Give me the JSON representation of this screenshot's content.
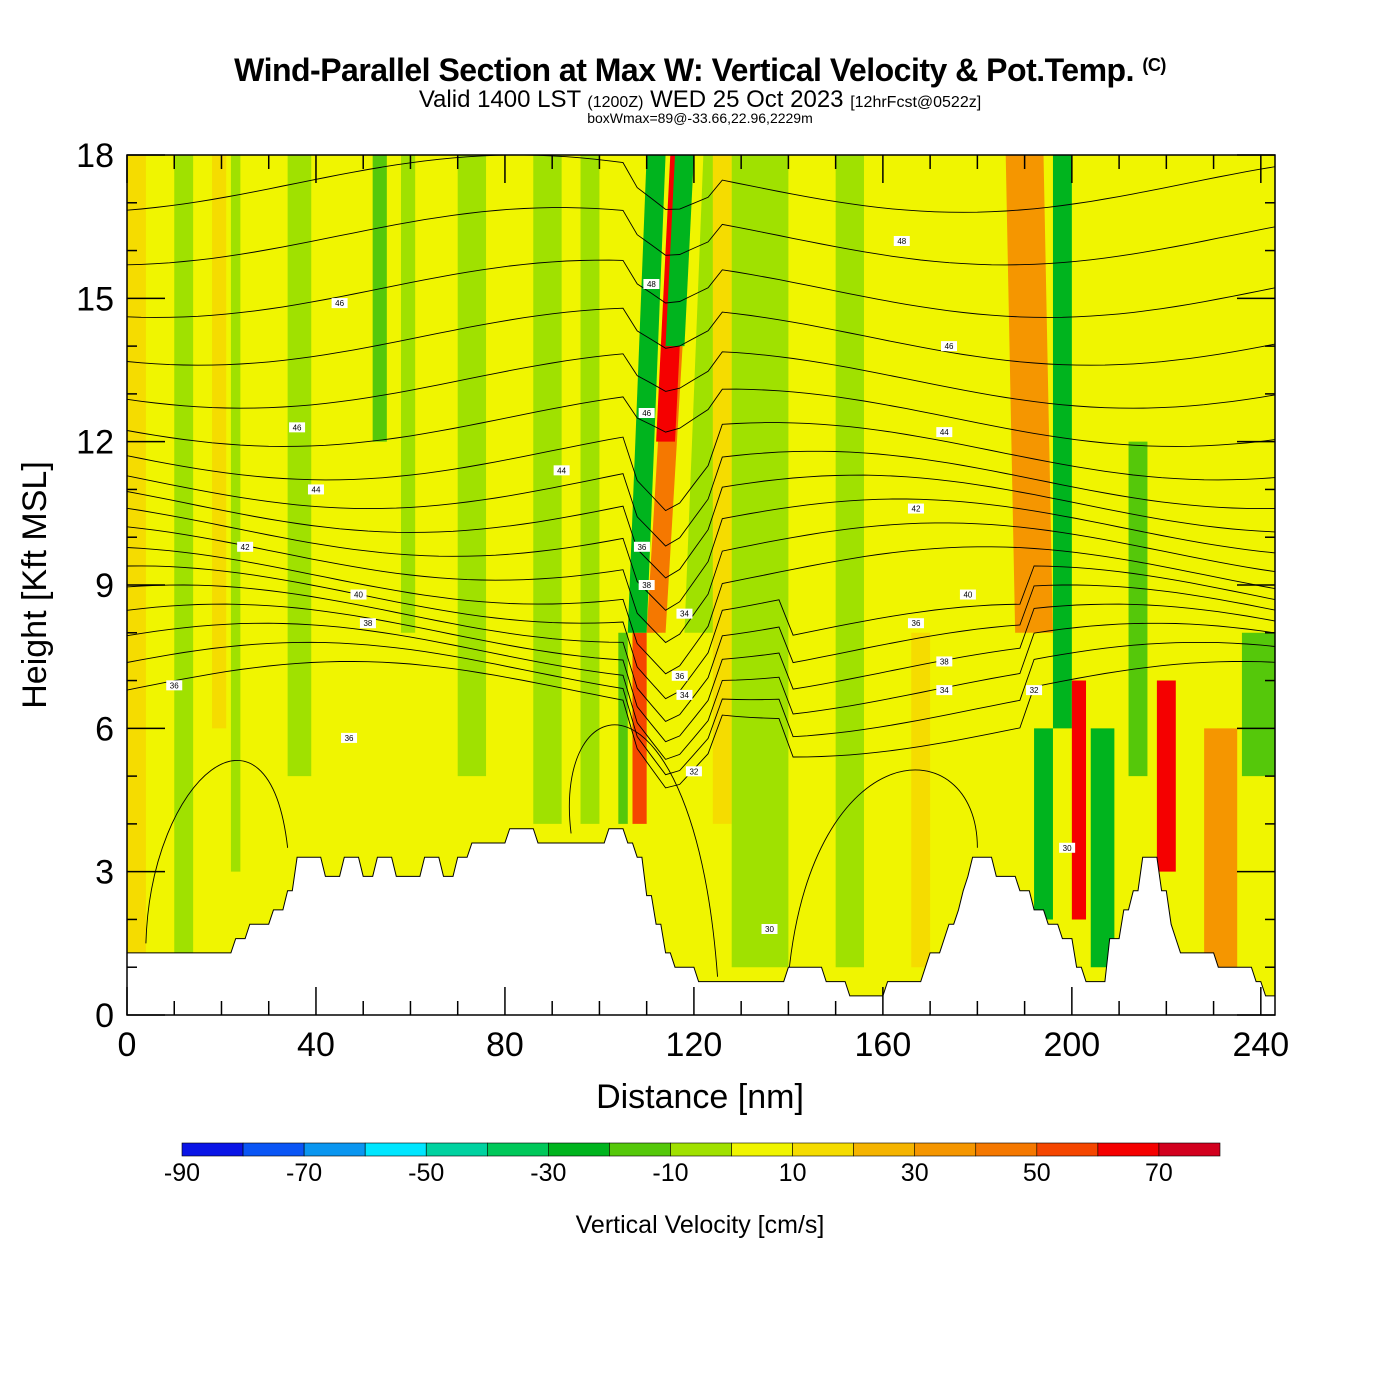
{
  "chart_data": {
    "type": "heatmap",
    "title": "Wind-Parallel Section at Max W: Vertical Velocity & Pot.Temp.",
    "copyright": "(C)",
    "subtitle_valid": "Valid 1400 LST",
    "subtitle_utc": "(1200Z)",
    "subtitle_date": "WED 25 Oct 2023",
    "subtitle_fcst": "[12hrFcst@0522z]",
    "subtitle2": "boxWmax=89@-33.66,22.96,2229m",
    "xlabel": "Distance [nm]",
    "ylabel": "Height [Kft MSL]",
    "xlim": [
      0,
      243
    ],
    "ylim": [
      0,
      18
    ],
    "x_ticks": [
      "0",
      "40",
      "80",
      "120",
      "160",
      "200",
      "240"
    ],
    "y_ticks": [
      "0",
      "3",
      "6",
      "9",
      "12",
      "15",
      "18"
    ],
    "colorbar": {
      "label": "Vertical Velocity [cm/s]",
      "tick_labels": [
        "-90",
        "-70",
        "-50",
        "-30",
        "-10",
        "10",
        "30",
        "50",
        "70"
      ],
      "levels": [
        -90,
        -80,
        -70,
        -60,
        -50,
        -40,
        -30,
        -20,
        -10,
        0,
        10,
        20,
        30,
        40,
        50,
        60,
        70,
        80
      ],
      "colors": [
        "#0a14e6",
        "#0a55f5",
        "#0a96f0",
        "#00e6ff",
        "#00d2a0",
        "#00c85a",
        "#00b41e",
        "#55c80a",
        "#a0e100",
        "#f0f500",
        "#f5dc00",
        "#f5b400",
        "#f59600",
        "#f57800",
        "#f54600",
        "#f50000",
        "#d2001e"
      ]
    },
    "terrain": [
      [
        0,
        1.3
      ],
      [
        22,
        1.3
      ],
      [
        23,
        1.6
      ],
      [
        25,
        1.6
      ],
      [
        26,
        1.9
      ],
      [
        30,
        1.9
      ],
      [
        31,
        2.2
      ],
      [
        33,
        2.2
      ],
      [
        34,
        2.6
      ],
      [
        35,
        2.6
      ],
      [
        36,
        3.3
      ],
      [
        41,
        3.3
      ],
      [
        42,
        2.9
      ],
      [
        45,
        2.9
      ],
      [
        46,
        3.3
      ],
      [
        49,
        3.3
      ],
      [
        50,
        2.9
      ],
      [
        52,
        2.9
      ],
      [
        53,
        3.3
      ],
      [
        56,
        3.3
      ],
      [
        57,
        2.9
      ],
      [
        62,
        2.9
      ],
      [
        63,
        3.3
      ],
      [
        66,
        3.3
      ],
      [
        67,
        2.9
      ],
      [
        69,
        2.9
      ],
      [
        70,
        3.3
      ],
      [
        72,
        3.3
      ],
      [
        73,
        3.6
      ],
      [
        80,
        3.6
      ],
      [
        81,
        3.9
      ],
      [
        86,
        3.9
      ],
      [
        87,
        3.6
      ],
      [
        101,
        3.6
      ],
      [
        102,
        3.9
      ],
      [
        105,
        3.9
      ],
      [
        106,
        3.6
      ],
      [
        107,
        3.6
      ],
      [
        108,
        3.3
      ],
      [
        109,
        3.3
      ],
      [
        110,
        2.5
      ],
      [
        111,
        2.5
      ],
      [
        112,
        1.9
      ],
      [
        113,
        1.9
      ],
      [
        114,
        1.3
      ],
      [
        115,
        1.3
      ],
      [
        116,
        1.0
      ],
      [
        120,
        1.0
      ],
      [
        121,
        0.7
      ],
      [
        139,
        0.7
      ],
      [
        140,
        1.0
      ],
      [
        147,
        1.0
      ],
      [
        148,
        0.7
      ],
      [
        152,
        0.7
      ],
      [
        153,
        0.4
      ],
      [
        160,
        0.4
      ],
      [
        161,
        0.7
      ],
      [
        168,
        0.7
      ],
      [
        169,
        1.0
      ],
      [
        170,
        1.3
      ],
      [
        172,
        1.3
      ],
      [
        173,
        1.6
      ],
      [
        174,
        1.9
      ],
      [
        175,
        1.9
      ],
      [
        176,
        2.2
      ],
      [
        177,
        2.6
      ],
      [
        178,
        2.9
      ],
      [
        179,
        3.3
      ],
      [
        183,
        3.3
      ],
      [
        184,
        2.9
      ],
      [
        188,
        2.9
      ],
      [
        189,
        2.6
      ],
      [
        191,
        2.6
      ],
      [
        192,
        2.2
      ],
      [
        194,
        2.2
      ],
      [
        195,
        1.9
      ],
      [
        197,
        1.9
      ],
      [
        198,
        1.6
      ],
      [
        200,
        1.6
      ],
      [
        201,
        1.0
      ],
      [
        202,
        1.0
      ],
      [
        203,
        0.7
      ],
      [
        207,
        0.7
      ],
      [
        208,
        1.6
      ],
      [
        210,
        1.6
      ],
      [
        211,
        2.2
      ],
      [
        212,
        2.2
      ],
      [
        213,
        2.6
      ],
      [
        214,
        2.6
      ],
      [
        215,
        3.3
      ],
      [
        218,
        3.3
      ],
      [
        219,
        2.6
      ],
      [
        220,
        2.6
      ],
      [
        221,
        1.9
      ],
      [
        222,
        1.6
      ],
      [
        223,
        1.3
      ],
      [
        230,
        1.3
      ],
      [
        231,
        1.0
      ],
      [
        238,
        1.0
      ],
      [
        239,
        0.7
      ],
      [
        240,
        0.7
      ],
      [
        241,
        0.4
      ],
      [
        243,
        0.4
      ]
    ],
    "contour_labels": [
      "36",
      "36",
      "38",
      "40",
      "42",
      "44",
      "46",
      "46",
      "44",
      "38",
      "34",
      "32",
      "30",
      "36",
      "34",
      "36",
      "46",
      "48",
      "46",
      "48",
      "44",
      "42",
      "40",
      "36",
      "38",
      "34",
      "32",
      "30"
    ]
  }
}
